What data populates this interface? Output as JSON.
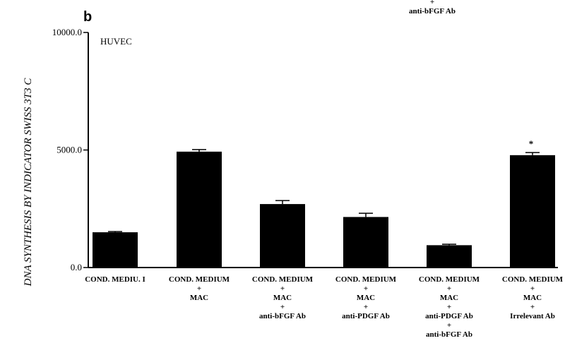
{
  "panel_label": "b",
  "top_fragment": [
    "+",
    "anti-bFGF Ab"
  ],
  "chart_data": {
    "type": "bar",
    "ylabel": "DNA SYNTHESIS BY INDICATOR SWISS 3T3 C",
    "ylim": [
      0,
      10000
    ],
    "yticks": [
      "0.0",
      "5000.0",
      "10000.0"
    ],
    "yticks_values": [
      0,
      5000,
      10000
    ],
    "inset_label": "HUVEC",
    "categories": [
      [
        "COND. MEDIU. I"
      ],
      [
        "COND. MEDIUM",
        "+",
        "MAC"
      ],
      [
        "COND. MEDIUM",
        "+",
        "MAC",
        "+",
        "anti-bFGF Ab"
      ],
      [
        "COND. MEDIUM",
        "+",
        "MAC",
        "+",
        "anti-PDGF Ab"
      ],
      [
        "COND. MEDIUM",
        "+",
        "MAC",
        "+",
        "anti-PDGF Ab",
        "+",
        "anti-bFGF Ab"
      ],
      [
        "COND. MEDIUM",
        "+",
        "MAC",
        "+",
        "Irrelevant Ab"
      ]
    ],
    "values": [
      1500,
      4930,
      2700,
      2150,
      950,
      4780
    ],
    "errors": [
      30,
      90,
      150,
      160,
      40,
      110
    ],
    "annotations": [
      "",
      "",
      "",
      "",
      "",
      "*"
    ],
    "bar_color": "#000000"
  }
}
